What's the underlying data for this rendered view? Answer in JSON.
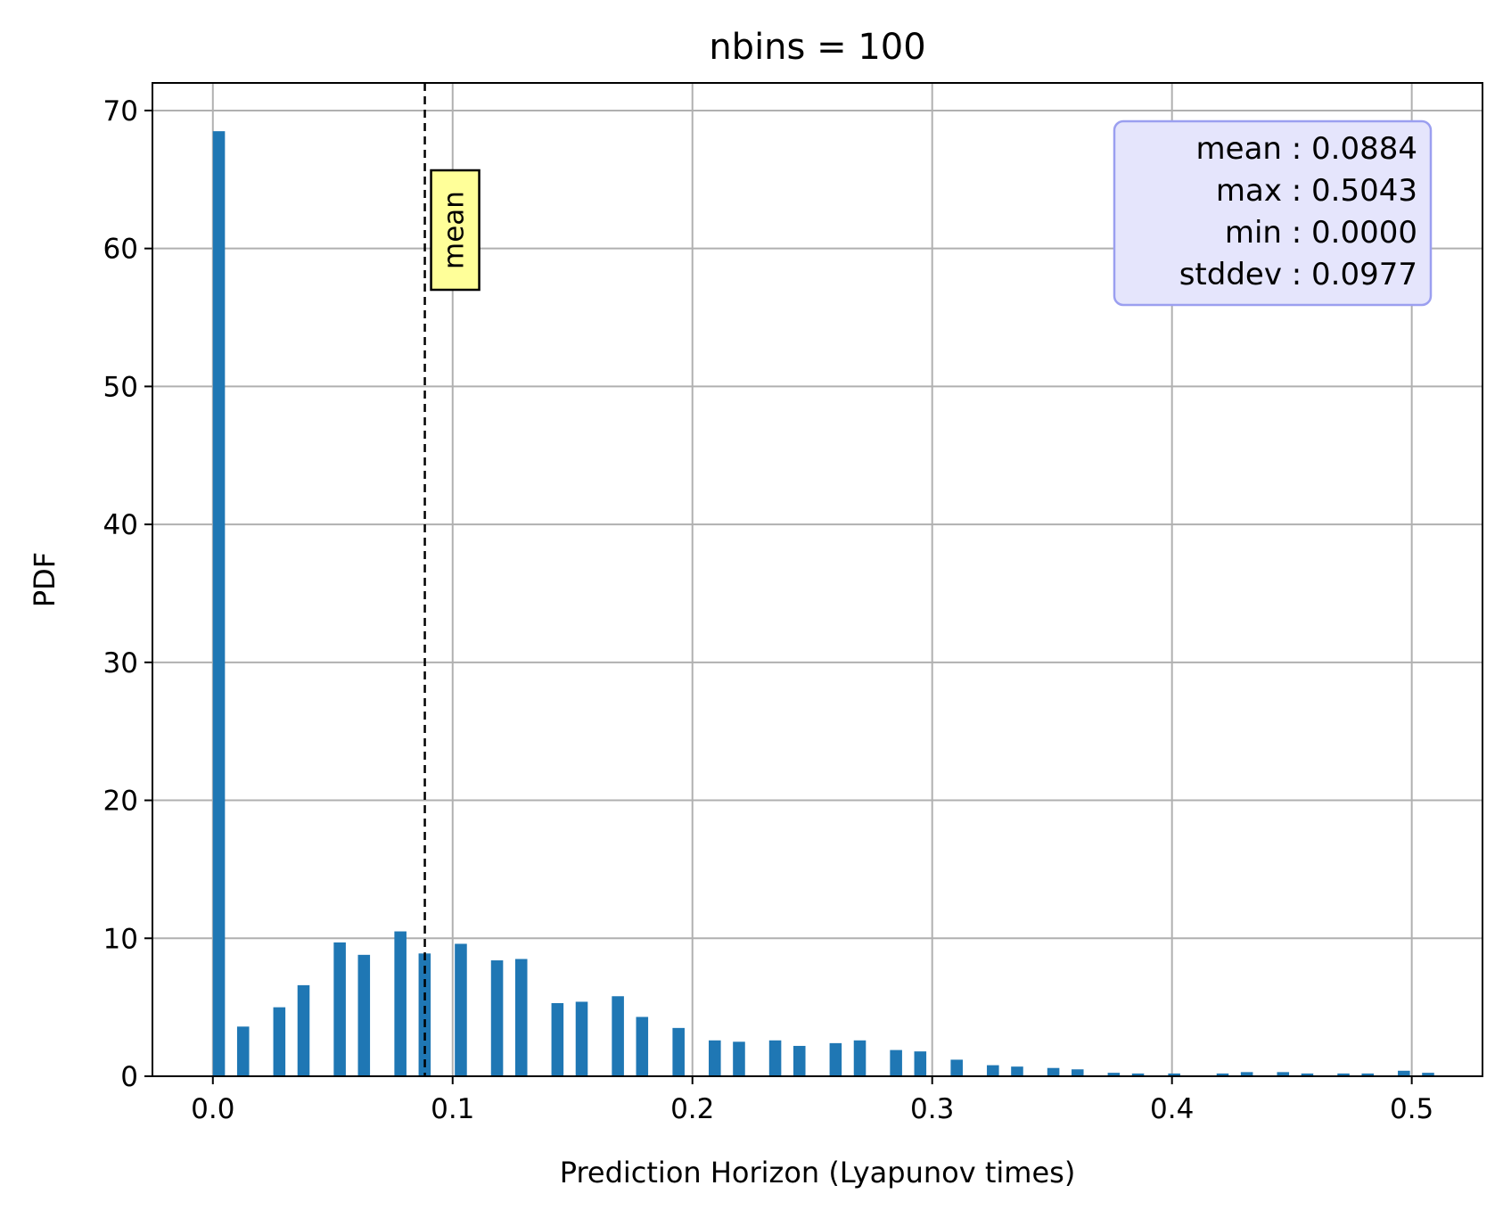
{
  "chart_data": {
    "type": "bar",
    "title": "nbins = 100",
    "xlabel": "Prediction Horizon (Lyapunov times)",
    "ylabel": "PDF",
    "xlim": [
      -0.0252,
      0.5295
    ],
    "ylim": [
      0,
      72
    ],
    "xticks": [
      0.0,
      0.1,
      0.2,
      0.3,
      0.4,
      0.5
    ],
    "xtick_labels": [
      "0.0",
      "0.1",
      "0.2",
      "0.3",
      "0.4",
      "0.5"
    ],
    "yticks": [
      0,
      10,
      20,
      30,
      40,
      50,
      60,
      70
    ],
    "ytick_labels": [
      "0",
      "10",
      "20",
      "30",
      "40",
      "50",
      "60",
      "70"
    ],
    "grid": true,
    "bin_width": 0.005043,
    "bar_color": "#1f77b4",
    "bars": [
      {
        "x": 0.0,
        "value": 68.5
      },
      {
        "x": 0.0101,
        "value": 3.6
      },
      {
        "x": 0.0252,
        "value": 5.0
      },
      {
        "x": 0.0353,
        "value": 6.6
      },
      {
        "x": 0.0504,
        "value": 9.7
      },
      {
        "x": 0.0605,
        "value": 8.8
      },
      {
        "x": 0.0757,
        "value": 10.5
      },
      {
        "x": 0.0858,
        "value": 8.9
      },
      {
        "x": 0.1009,
        "value": 9.6
      },
      {
        "x": 0.116,
        "value": 8.4
      },
      {
        "x": 0.1261,
        "value": 8.5
      },
      {
        "x": 0.1412,
        "value": 5.3
      },
      {
        "x": 0.1513,
        "value": 5.4
      },
      {
        "x": 0.1664,
        "value": 5.8
      },
      {
        "x": 0.1765,
        "value": 4.3
      },
      {
        "x": 0.1917,
        "value": 3.5
      },
      {
        "x": 0.2068,
        "value": 2.6
      },
      {
        "x": 0.2169,
        "value": 2.5
      },
      {
        "x": 0.232,
        "value": 2.6
      },
      {
        "x": 0.2421,
        "value": 2.2
      },
      {
        "x": 0.2572,
        "value": 2.4
      },
      {
        "x": 0.2673,
        "value": 2.6
      },
      {
        "x": 0.2824,
        "value": 1.9
      },
      {
        "x": 0.2925,
        "value": 1.8
      },
      {
        "x": 0.3077,
        "value": 1.2
      },
      {
        "x": 0.3228,
        "value": 0.8
      },
      {
        "x": 0.3329,
        "value": 0.7
      },
      {
        "x": 0.348,
        "value": 0.6
      },
      {
        "x": 0.3581,
        "value": 0.5
      },
      {
        "x": 0.3732,
        "value": 0.25
      },
      {
        "x": 0.3833,
        "value": 0.2
      },
      {
        "x": 0.3984,
        "value": 0.2
      },
      {
        "x": 0.4186,
        "value": 0.2
      },
      {
        "x": 0.4287,
        "value": 0.3
      },
      {
        "x": 0.4438,
        "value": 0.3
      },
      {
        "x": 0.4539,
        "value": 0.2
      },
      {
        "x": 0.469,
        "value": 0.2
      },
      {
        "x": 0.4791,
        "value": 0.2
      },
      {
        "x": 0.4942,
        "value": 0.4
      },
      {
        "x": 0.5043,
        "value": 0.25
      }
    ],
    "mean_line": {
      "x": 0.0884,
      "label": "mean",
      "label_bg": "#ffff99"
    },
    "stats_box": {
      "lines": [
        "mean : 0.0884",
        "max : 0.5043",
        "min : 0.0000",
        "stddev : 0.0977"
      ],
      "placement": "top-right",
      "background": "#e5e5fc",
      "border": "#9b9ff0"
    }
  }
}
